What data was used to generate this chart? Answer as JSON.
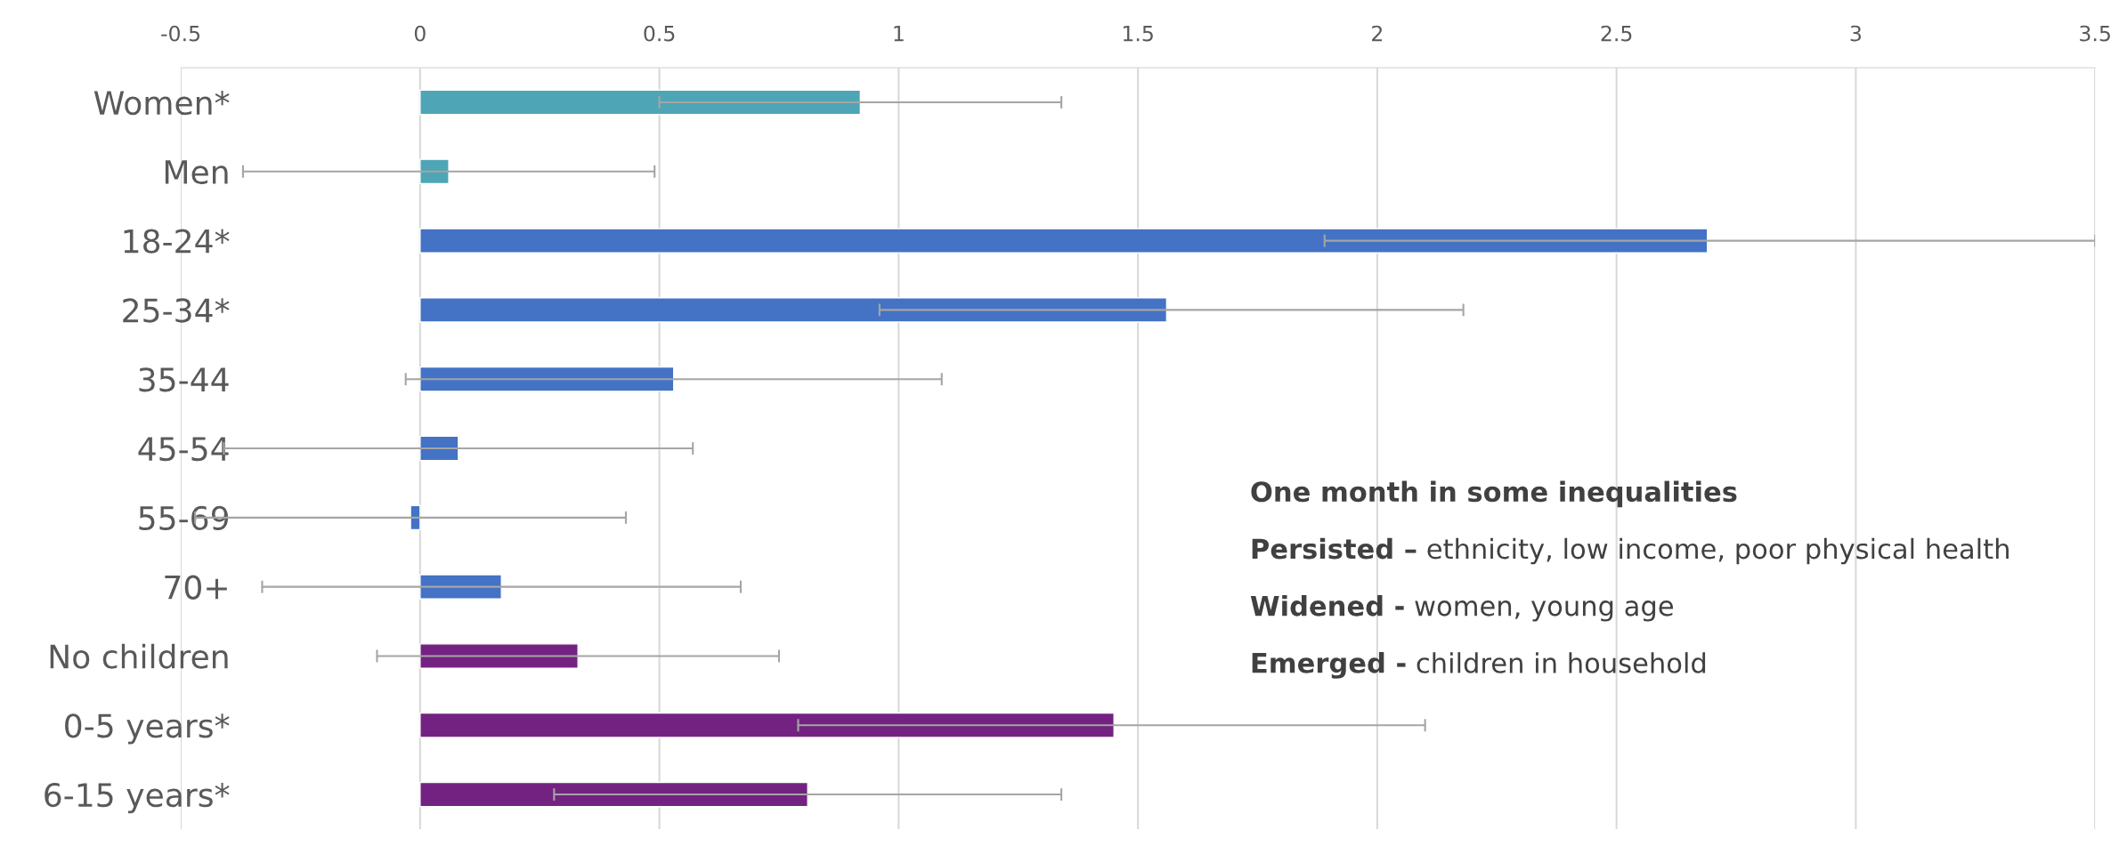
{
  "chart_data": {
    "type": "bar",
    "orientation": "horizontal",
    "categories": [
      "Women*",
      "Men",
      "18-24*",
      "25-34*",
      "35-44",
      "45-54",
      "55-69",
      "70+",
      "No children",
      "0-5 years*",
      "6-15 years*"
    ],
    "values": [
      0.92,
      0.06,
      2.69,
      1.56,
      0.53,
      0.08,
      -0.02,
      0.17,
      0.33,
      1.45,
      0.81
    ],
    "colors": [
      "#4ea5b5",
      "#4ea5b5",
      "#4472c4",
      "#4472c4",
      "#4472c4",
      "#4472c4",
      "#4472c4",
      "#4472c4",
      "#732282",
      "#732282",
      "#732282"
    ],
    "errors": [
      [
        0.5,
        1.34
      ],
      [
        -0.37,
        0.49
      ],
      [
        1.89,
        3.5
      ],
      [
        0.96,
        2.18
      ],
      [
        -0.03,
        1.09
      ],
      [
        -0.41,
        0.57
      ],
      [
        -0.47,
        0.43
      ],
      [
        -0.33,
        0.67
      ],
      [
        -0.09,
        0.75
      ],
      [
        0.79,
        2.1
      ],
      [
        0.28,
        1.34
      ]
    ],
    "xlim": [
      -0.5,
      3.5
    ],
    "xticks": [
      -0.5,
      0,
      0.5,
      1,
      1.5,
      2,
      2.5,
      3,
      3.5
    ],
    "grid": "x",
    "annotations": [
      "One month in some inequalities",
      "Persisted – ethnicity, low income, poor physical health",
      "Widened - women, young age",
      "Emerged - children in household"
    ]
  }
}
